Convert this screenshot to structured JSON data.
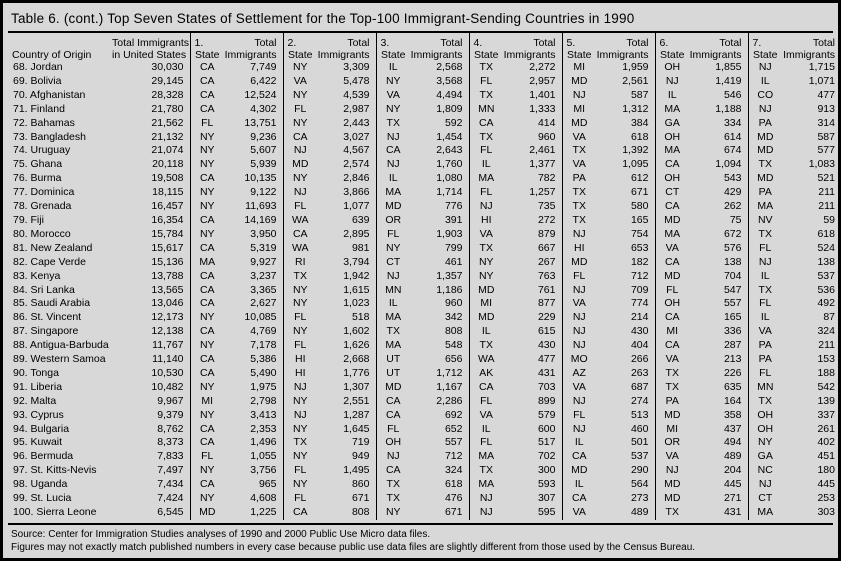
{
  "title": "Table 6. (cont.) Top Seven States of Settlement for the Top-100 Immigrant-Sending Countries in 1990",
  "colors": {
    "background": "#d8d8d8",
    "border": "#000000",
    "text": "#000000"
  },
  "table": {
    "col_country_header": "Country of Origin",
    "col_total_header_line1": "Total Immigrants",
    "col_total_header_line2": "in United States",
    "group_labels": [
      "1.",
      "2.",
      "3.",
      "4.",
      "5.",
      "6.",
      "7."
    ],
    "state_label": "State",
    "total_label": "Total",
    "immigrants_label": "Immigrants",
    "rows": [
      {
        "country": "68. Jordan",
        "total_us": "30,030",
        "states": [
          [
            "CA",
            "7,749"
          ],
          [
            "NY",
            "3,309"
          ],
          [
            "IL",
            "2,568"
          ],
          [
            "TX",
            "2,272"
          ],
          [
            "MI",
            "1,959"
          ],
          [
            "OH",
            "1,855"
          ],
          [
            "NJ",
            "1,715"
          ]
        ]
      },
      {
        "country": "69. Bolivia",
        "total_us": "29,145",
        "states": [
          [
            "CA",
            "6,422"
          ],
          [
            "VA",
            "5,478"
          ],
          [
            "NY",
            "3,568"
          ],
          [
            "FL",
            "2,957"
          ],
          [
            "MD",
            "2,561"
          ],
          [
            "NJ",
            "1,419"
          ],
          [
            "IL",
            "1,071"
          ]
        ]
      },
      {
        "country": "70. Afghanistan",
        "total_us": "28,328",
        "states": [
          [
            "CA",
            "12,524"
          ],
          [
            "NY",
            "4,539"
          ],
          [
            "VA",
            "4,494"
          ],
          [
            "TX",
            "1,401"
          ],
          [
            "NJ",
            "587"
          ],
          [
            "IL",
            "546"
          ],
          [
            "CO",
            "477"
          ]
        ]
      },
      {
        "country": "71. Finland",
        "total_us": "21,780",
        "states": [
          [
            "CA",
            "4,302"
          ],
          [
            "FL",
            "2,987"
          ],
          [
            "NY",
            "1,809"
          ],
          [
            "MN",
            "1,333"
          ],
          [
            "MI",
            "1,312"
          ],
          [
            "MA",
            "1,188"
          ],
          [
            "NJ",
            "913"
          ]
        ]
      },
      {
        "country": "72. Bahamas",
        "total_us": "21,562",
        "states": [
          [
            "FL",
            "13,751"
          ],
          [
            "NY",
            "2,443"
          ],
          [
            "TX",
            "592"
          ],
          [
            "CA",
            "414"
          ],
          [
            "MD",
            "384"
          ],
          [
            "GA",
            "334"
          ],
          [
            "PA",
            "314"
          ]
        ]
      },
      {
        "country": "73. Bangladesh",
        "total_us": "21,132",
        "states": [
          [
            "NY",
            "9,236"
          ],
          [
            "CA",
            "3,027"
          ],
          [
            "NJ",
            "1,454"
          ],
          [
            "TX",
            "960"
          ],
          [
            "VA",
            "618"
          ],
          [
            "OH",
            "614"
          ],
          [
            "MD",
            "587"
          ]
        ]
      },
      {
        "country": "74. Uruguay",
        "total_us": "21,074",
        "states": [
          [
            "NY",
            "5,607"
          ],
          [
            "NJ",
            "4,567"
          ],
          [
            "CA",
            "2,643"
          ],
          [
            "FL",
            "2,461"
          ],
          [
            "TX",
            "1,392"
          ],
          [
            "MA",
            "674"
          ],
          [
            "MD",
            "577"
          ]
        ]
      },
      {
        "country": "75. Ghana",
        "total_us": "20,118",
        "states": [
          [
            "NY",
            "5,939"
          ],
          [
            "MD",
            "2,574"
          ],
          [
            "NJ",
            "1,760"
          ],
          [
            "IL",
            "1,377"
          ],
          [
            "VA",
            "1,095"
          ],
          [
            "CA",
            "1,094"
          ],
          [
            "TX",
            "1,083"
          ]
        ]
      },
      {
        "country": "76. Burma",
        "total_us": "19,508",
        "states": [
          [
            "CA",
            "10,135"
          ],
          [
            "NY",
            "2,846"
          ],
          [
            "IL",
            "1,080"
          ],
          [
            "MA",
            "782"
          ],
          [
            "PA",
            "612"
          ],
          [
            "OH",
            "543"
          ],
          [
            "MD",
            "521"
          ]
        ]
      },
      {
        "country": "77. Dominica",
        "total_us": "18,115",
        "states": [
          [
            "NY",
            "9,122"
          ],
          [
            "NJ",
            "3,866"
          ],
          [
            "MA",
            "1,714"
          ],
          [
            "FL",
            "1,257"
          ],
          [
            "TX",
            "671"
          ],
          [
            "CT",
            "429"
          ],
          [
            "PA",
            "211"
          ]
        ]
      },
      {
        "country": "78. Grenada",
        "total_us": "16,457",
        "states": [
          [
            "NY",
            "11,693"
          ],
          [
            "FL",
            "1,077"
          ],
          [
            "MD",
            "776"
          ],
          [
            "NJ",
            "735"
          ],
          [
            "TX",
            "580"
          ],
          [
            "CA",
            "262"
          ],
          [
            "MA",
            "211"
          ]
        ]
      },
      {
        "country": "79. Fiji",
        "total_us": "16,354",
        "states": [
          [
            "CA",
            "14,169"
          ],
          [
            "WA",
            "639"
          ],
          [
            "OR",
            "391"
          ],
          [
            "HI",
            "272"
          ],
          [
            "TX",
            "165"
          ],
          [
            "MD",
            "75"
          ],
          [
            "NV",
            "59"
          ]
        ]
      },
      {
        "country": "80. Morocco",
        "total_us": "15,784",
        "states": [
          [
            "NY",
            "3,950"
          ],
          [
            "CA",
            "2,895"
          ],
          [
            "FL",
            "1,903"
          ],
          [
            "VA",
            "879"
          ],
          [
            "NJ",
            "754"
          ],
          [
            "MA",
            "672"
          ],
          [
            "TX",
            "618"
          ]
        ]
      },
      {
        "country": "81. New Zealand",
        "total_us": "15,617",
        "states": [
          [
            "CA",
            "5,319"
          ],
          [
            "WA",
            "981"
          ],
          [
            "NY",
            "799"
          ],
          [
            "TX",
            "667"
          ],
          [
            "HI",
            "653"
          ],
          [
            "VA",
            "576"
          ],
          [
            "FL",
            "524"
          ]
        ]
      },
      {
        "country": "82. Cape Verde",
        "total_us": "15,136",
        "states": [
          [
            "MA",
            "9,927"
          ],
          [
            "RI",
            "3,794"
          ],
          [
            "CT",
            "461"
          ],
          [
            "NY",
            "267"
          ],
          [
            "MD",
            "182"
          ],
          [
            "CA",
            "138"
          ],
          [
            "NJ",
            "138"
          ]
        ]
      },
      {
        "country": "83. Kenya",
        "total_us": "13,788",
        "states": [
          [
            "CA",
            "3,237"
          ],
          [
            "TX",
            "1,942"
          ],
          [
            "NJ",
            "1,357"
          ],
          [
            "NY",
            "763"
          ],
          [
            "FL",
            "712"
          ],
          [
            "MD",
            "704"
          ],
          [
            "IL",
            "537"
          ]
        ]
      },
      {
        "country": "84. Sri Lanka",
        "total_us": "13,565",
        "states": [
          [
            "CA",
            "3,365"
          ],
          [
            "NY",
            "1,615"
          ],
          [
            "MN",
            "1,186"
          ],
          [
            "MD",
            "761"
          ],
          [
            "NJ",
            "709"
          ],
          [
            "FL",
            "547"
          ],
          [
            "TX",
            "536"
          ]
        ]
      },
      {
        "country": "85. Saudi Arabia",
        "total_us": "13,046",
        "states": [
          [
            "CA",
            "2,627"
          ],
          [
            "NY",
            "1,023"
          ],
          [
            "IL",
            "960"
          ],
          [
            "MI",
            "877"
          ],
          [
            "VA",
            "774"
          ],
          [
            "OH",
            "557"
          ],
          [
            "FL",
            "492"
          ]
        ]
      },
      {
        "country": "86. St. Vincent",
        "total_us": "12,173",
        "states": [
          [
            "NY",
            "10,085"
          ],
          [
            "FL",
            "518"
          ],
          [
            "MA",
            "342"
          ],
          [
            "MD",
            "229"
          ],
          [
            "NJ",
            "214"
          ],
          [
            "CA",
            "165"
          ],
          [
            "IL",
            "87"
          ]
        ]
      },
      {
        "country": "87. Singapore",
        "total_us": "12,138",
        "states": [
          [
            "CA",
            "4,769"
          ],
          [
            "NY",
            "1,602"
          ],
          [
            "TX",
            "808"
          ],
          [
            "IL",
            "615"
          ],
          [
            "NJ",
            "430"
          ],
          [
            "MI",
            "336"
          ],
          [
            "VA",
            "324"
          ]
        ]
      },
      {
        "country": "88. Antigua-Barbuda",
        "total_us": "11,767",
        "states": [
          [
            "NY",
            "7,178"
          ],
          [
            "FL",
            "1,626"
          ],
          [
            "MA",
            "548"
          ],
          [
            "TX",
            "430"
          ],
          [
            "NJ",
            "404"
          ],
          [
            "CA",
            "287"
          ],
          [
            "PA",
            "211"
          ]
        ]
      },
      {
        "country": "89. Western Samoa",
        "total_us": "11,140",
        "states": [
          [
            "CA",
            "5,386"
          ],
          [
            "HI",
            "2,668"
          ],
          [
            "UT",
            "656"
          ],
          [
            "WA",
            "477"
          ],
          [
            "MO",
            "266"
          ],
          [
            "VA",
            "213"
          ],
          [
            "PA",
            "153"
          ]
        ]
      },
      {
        "country": "90. Tonga",
        "total_us": "10,530",
        "states": [
          [
            "CA",
            "5,490"
          ],
          [
            "HI",
            "1,776"
          ],
          [
            "UT",
            "1,712"
          ],
          [
            "AK",
            "431"
          ],
          [
            "AZ",
            "263"
          ],
          [
            "TX",
            "226"
          ],
          [
            "FL",
            "188"
          ]
        ]
      },
      {
        "country": "91. Liberia",
        "total_us": "10,482",
        "states": [
          [
            "NY",
            "1,975"
          ],
          [
            "NJ",
            "1,307"
          ],
          [
            "MD",
            "1,167"
          ],
          [
            "CA",
            "703"
          ],
          [
            "VA",
            "687"
          ],
          [
            "TX",
            "635"
          ],
          [
            "MN",
            "542"
          ]
        ]
      },
      {
        "country": "92. Malta",
        "total_us": "9,967",
        "states": [
          [
            "MI",
            "2,798"
          ],
          [
            "NY",
            "2,551"
          ],
          [
            "CA",
            "2,286"
          ],
          [
            "FL",
            "899"
          ],
          [
            "NJ",
            "274"
          ],
          [
            "PA",
            "164"
          ],
          [
            "TX",
            "139"
          ]
        ]
      },
      {
        "country": "93. Cyprus",
        "total_us": "9,379",
        "states": [
          [
            "NY",
            "3,413"
          ],
          [
            "NJ",
            "1,287"
          ],
          [
            "CA",
            "692"
          ],
          [
            "VA",
            "579"
          ],
          [
            "FL",
            "513"
          ],
          [
            "MD",
            "358"
          ],
          [
            "OH",
            "337"
          ]
        ]
      },
      {
        "country": "94. Bulgaria",
        "total_us": "8,762",
        "states": [
          [
            "CA",
            "2,353"
          ],
          [
            "NY",
            "1,645"
          ],
          [
            "FL",
            "652"
          ],
          [
            "IL",
            "600"
          ],
          [
            "NJ",
            "460"
          ],
          [
            "MI",
            "437"
          ],
          [
            "OH",
            "261"
          ]
        ]
      },
      {
        "country": "95. Kuwait",
        "total_us": "8,373",
        "states": [
          [
            "CA",
            "1,496"
          ],
          [
            "TX",
            "719"
          ],
          [
            "OH",
            "557"
          ],
          [
            "FL",
            "517"
          ],
          [
            "IL",
            "501"
          ],
          [
            "OR",
            "494"
          ],
          [
            "NY",
            "402"
          ]
        ]
      },
      {
        "country": "96. Bermuda",
        "total_us": "7,833",
        "states": [
          [
            "FL",
            "1,055"
          ],
          [
            "NY",
            "949"
          ],
          [
            "NJ",
            "712"
          ],
          [
            "MA",
            "702"
          ],
          [
            "CA",
            "537"
          ],
          [
            "VA",
            "489"
          ],
          [
            "GA",
            "451"
          ]
        ]
      },
      {
        "country": "97. St. Kitts-Nevis",
        "total_us": "7,497",
        "states": [
          [
            "NY",
            "3,756"
          ],
          [
            "FL",
            "1,495"
          ],
          [
            "CA",
            "324"
          ],
          [
            "TX",
            "300"
          ],
          [
            "MD",
            "290"
          ],
          [
            "NJ",
            "204"
          ],
          [
            "NC",
            "180"
          ]
        ]
      },
      {
        "country": "98. Uganda",
        "total_us": "7,434",
        "states": [
          [
            "CA",
            "965"
          ],
          [
            "NY",
            "860"
          ],
          [
            "TX",
            "618"
          ],
          [
            "MA",
            "593"
          ],
          [
            "IL",
            "564"
          ],
          [
            "MD",
            "445"
          ],
          [
            "NJ",
            "445"
          ]
        ]
      },
      {
        "country": "99. St. Lucia",
        "total_us": "7,424",
        "states": [
          [
            "NY",
            "4,608"
          ],
          [
            "FL",
            "671"
          ],
          [
            "TX",
            "476"
          ],
          [
            "NJ",
            "307"
          ],
          [
            "CA",
            "273"
          ],
          [
            "MD",
            "271"
          ],
          [
            "CT",
            "253"
          ]
        ]
      },
      {
        "country": "100. Sierra Leone",
        "total_us": "6,545",
        "states": [
          [
            "MD",
            "1,225"
          ],
          [
            "CA",
            "808"
          ],
          [
            "NY",
            "671"
          ],
          [
            "NJ",
            "595"
          ],
          [
            "VA",
            "489"
          ],
          [
            "TX",
            "431"
          ],
          [
            "MA",
            "303"
          ]
        ]
      }
    ]
  },
  "footer": {
    "source": "Source: Center for Immigration Studies analyses of 1990 and 2000 Public Use Micro data files.",
    "note": "Figures may not exactly match published numbers in every case because public use data files are slightly different from those used by the Census Bureau."
  }
}
